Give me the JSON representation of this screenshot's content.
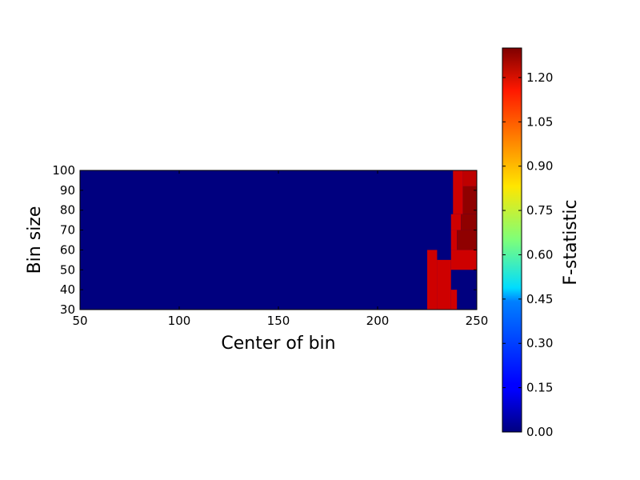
{
  "chart_data": {
    "type": "heatmap",
    "title": "",
    "xlabel": "Center of bin",
    "ylabel": "Bin size",
    "xlim": [
      50,
      250
    ],
    "ylim": [
      30,
      100
    ],
    "x_ticks": [
      "50",
      "100",
      "150",
      "200",
      "250"
    ],
    "y_ticks": [
      "30",
      "40",
      "50",
      "60",
      "70",
      "80",
      "90",
      "100"
    ],
    "colormap": "jet",
    "colorbar": {
      "label": "F-statistic",
      "range": [
        0.0,
        1.3
      ],
      "ticks": [
        "0.00",
        "0.15",
        "0.30",
        "0.45",
        "0.60",
        "0.75",
        "0.90",
        "1.05",
        "1.20"
      ]
    },
    "background_value": 0.0,
    "regions": [
      {
        "x": [
          225,
          230
        ],
        "y": [
          30,
          60
        ],
        "value": 1.2
      },
      {
        "x": [
          230,
          237
        ],
        "y": [
          30,
          55
        ],
        "value": 1.2
      },
      {
        "x": [
          237,
          240
        ],
        "y": [
          30,
          40
        ],
        "value": 1.2
      },
      {
        "x": [
          237,
          250
        ],
        "y": [
          50,
          60
        ],
        "value": 1.2
      },
      {
        "x": [
          237,
          240
        ],
        "y": [
          60,
          70
        ],
        "value": 1.2
      },
      {
        "x": [
          240,
          250
        ],
        "y": [
          60,
          70
        ],
        "value": 1.28
      },
      {
        "x": [
          237,
          242
        ],
        "y": [
          70,
          78
        ],
        "value": 1.2
      },
      {
        "x": [
          242,
          250
        ],
        "y": [
          70,
          78
        ],
        "value": 1.28
      },
      {
        "x": [
          238,
          243
        ],
        "y": [
          78,
          100
        ],
        "value": 1.2
      },
      {
        "x": [
          243,
          250
        ],
        "y": [
          78,
          92
        ],
        "value": 1.28
      },
      {
        "x": [
          243,
          250
        ],
        "y": [
          92,
          100
        ],
        "value": 1.22
      }
    ]
  }
}
